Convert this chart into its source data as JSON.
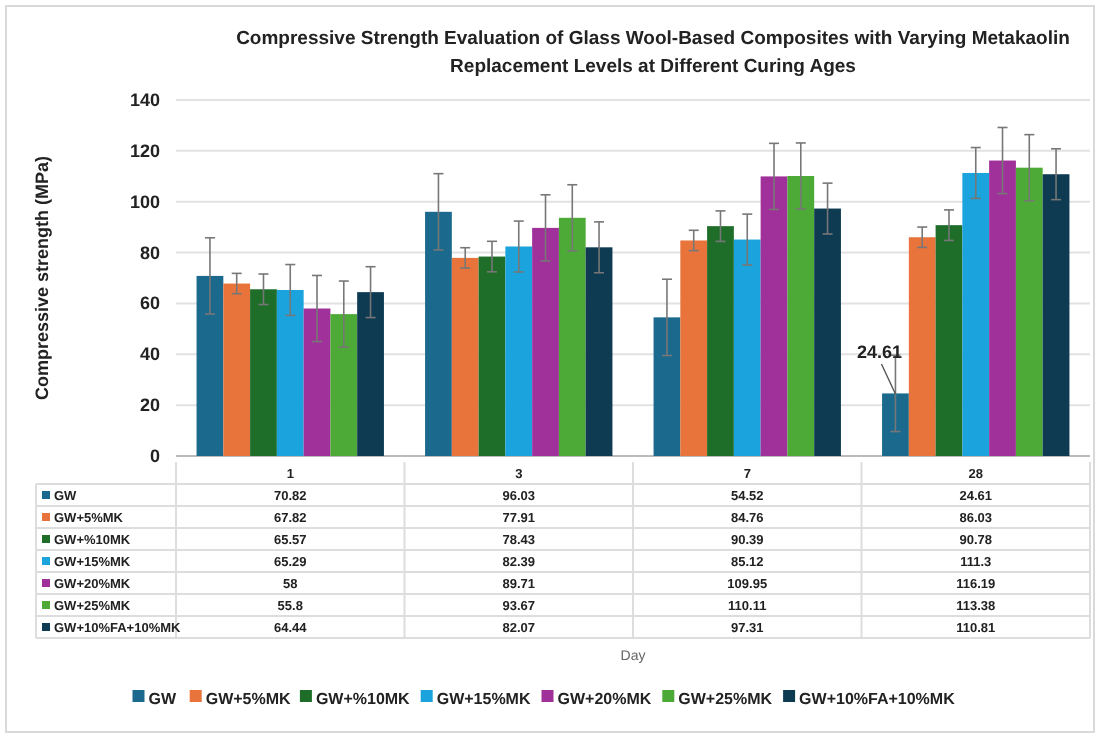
{
  "chart_data": {
    "type": "bar",
    "title": "Compressive Strength Evaluation of Glass Wool-Based Composites with Varying Metakaolin Replacement Levels at Different Curing Ages",
    "ylabel": "Compressive strength (MPa)",
    "categories": [
      "1",
      "3",
      "7",
      "28"
    ],
    "series": [
      {
        "name": "GW",
        "color": "#1b6a8e",
        "values": [
          70.82,
          96.03,
          54.52,
          24.61
        ],
        "errors": [
          15,
          15,
          15,
          15
        ],
        "value_labels": [
          "70.82",
          "96.03",
          "54.52",
          "24.61"
        ]
      },
      {
        "name": "GW+5%MK",
        "color": "#e8743b",
        "values": [
          67.82,
          77.91,
          84.76,
          86.03
        ],
        "errors": [
          4,
          4,
          4,
          4
        ]
      },
      {
        "name": "GW+%10MK",
        "color": "#1e6e2a",
        "values": [
          65.57,
          78.43,
          90.39,
          90.78
        ],
        "errors": [
          6,
          6,
          6,
          6
        ]
      },
      {
        "name": "GW+15%MK",
        "color": "#1aa3dc",
        "values": [
          65.29,
          82.39,
          85.12,
          111.3
        ],
        "errors": [
          10,
          10,
          10,
          10
        ]
      },
      {
        "name": "GW+20%MK",
        "color": "#a0309a",
        "values": [
          58,
          89.71,
          109.95,
          116.19
        ],
        "errors": [
          13,
          13,
          13,
          13
        ]
      },
      {
        "name": "GW+25%MK",
        "color": "#4eaa37",
        "values": [
          55.8,
          93.67,
          110.11,
          113.38
        ],
        "errors": [
          13,
          13,
          13,
          13
        ]
      },
      {
        "name": "GW+10%FA+10%MK",
        "color": "#0e3a52",
        "values": [
          64.44,
          82.07,
          97.31,
          110.81
        ],
        "errors": [
          10,
          10,
          10,
          10
        ]
      }
    ],
    "ylim": [
      0,
      140
    ],
    "yticks": [
      0,
      20,
      40,
      60,
      80,
      100,
      120,
      140
    ],
    "grid": "y",
    "legend": "bottom",
    "data_labels": true,
    "annotations": [
      "24.61",
      "Day"
    ]
  }
}
